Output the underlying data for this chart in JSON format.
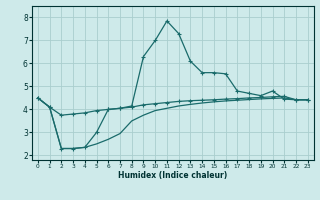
{
  "xlabel": "Humidex (Indice chaleur)",
  "bg_color": "#ceeaea",
  "grid_color": "#aacece",
  "line_color": "#1a6b6b",
  "xlim": [
    -0.5,
    23.5
  ],
  "ylim": [
    1.8,
    8.5
  ],
  "yticks": [
    2,
    3,
    4,
    5,
    6,
    7,
    8
  ],
  "xticks": [
    0,
    1,
    2,
    3,
    4,
    5,
    6,
    7,
    8,
    9,
    10,
    11,
    12,
    13,
    14,
    15,
    16,
    17,
    18,
    19,
    20,
    21,
    22,
    23
  ],
  "series_main_x": [
    0,
    1,
    2,
    3,
    4,
    5,
    6,
    7,
    8,
    9,
    10,
    11,
    12,
    13,
    14,
    15,
    16,
    17,
    18,
    19,
    20,
    21,
    22,
    23
  ],
  "series_main_y": [
    4.5,
    4.1,
    2.3,
    2.3,
    2.35,
    3.0,
    4.0,
    4.05,
    4.15,
    6.3,
    7.0,
    7.85,
    7.3,
    6.1,
    5.6,
    5.6,
    5.55,
    4.8,
    4.7,
    4.6,
    4.8,
    4.45,
    4.42,
    4.42
  ],
  "series_upper_x": [
    0,
    1,
    2,
    3,
    4,
    5,
    6,
    7,
    8,
    9,
    10,
    11,
    12,
    13,
    14,
    15,
    16,
    17,
    18,
    19,
    20,
    21,
    22,
    23
  ],
  "series_upper_y": [
    4.5,
    4.1,
    3.75,
    3.8,
    3.85,
    3.95,
    4.0,
    4.05,
    4.1,
    4.2,
    4.25,
    4.3,
    4.35,
    4.38,
    4.4,
    4.42,
    4.45,
    4.47,
    4.5,
    4.52,
    4.55,
    4.57,
    4.42,
    4.42
  ],
  "series_lower_x": [
    0,
    1,
    2,
    3,
    4,
    5,
    6,
    7,
    8,
    9,
    10,
    11,
    12,
    13,
    14,
    15,
    16,
    17,
    18,
    19,
    20,
    21,
    22,
    23
  ],
  "series_lower_y": [
    4.5,
    4.1,
    2.3,
    2.3,
    2.35,
    2.5,
    2.7,
    2.95,
    3.5,
    3.75,
    3.95,
    4.05,
    4.15,
    4.22,
    4.28,
    4.33,
    4.37,
    4.4,
    4.43,
    4.46,
    4.48,
    4.5,
    4.42,
    4.42
  ]
}
